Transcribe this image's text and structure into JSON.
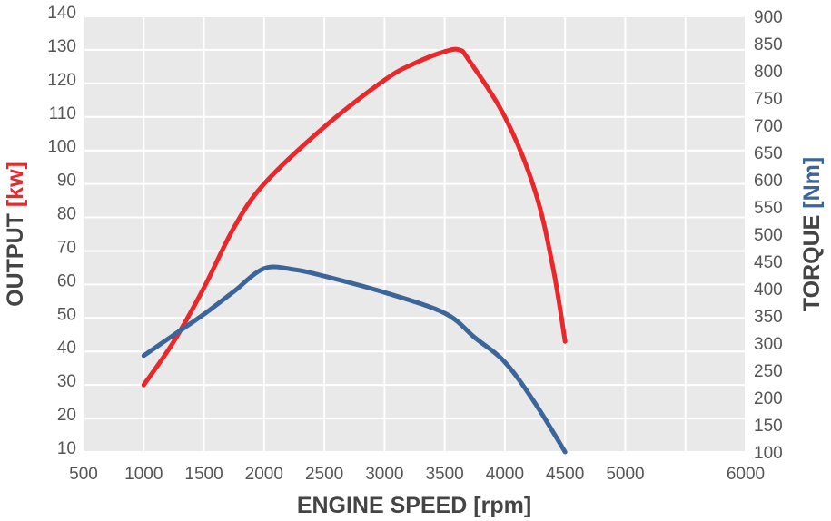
{
  "chart_data": {
    "type": "line",
    "xlabel": "ENGINE SPEED [rpm]",
    "ylabel_left": {
      "text": "OUTPUT ",
      "unit": "[kw]"
    },
    "ylabel_right": {
      "text": "TORQUE ",
      "unit": "[Nm]"
    },
    "x_range": [
      500,
      6000
    ],
    "x_ticks": [
      500,
      1000,
      1500,
      2000,
      2500,
      3000,
      3500,
      4000,
      4500,
      5000,
      6000
    ],
    "x_tick_labels": [
      "500",
      "1000",
      "1500",
      "2000",
      "2500",
      "3000",
      "3500",
      "4000",
      "4500",
      "5000",
      "6000"
    ],
    "x_grid": [
      500,
      1000,
      1500,
      2000,
      2500,
      3000,
      3500,
      4000,
      4500,
      5000,
      5500,
      6000
    ],
    "y_left_range": [
      10,
      140
    ],
    "y_left_ticks": [
      "10",
      "20",
      "30",
      "40",
      "50",
      "60",
      "70",
      "80",
      "90",
      "100",
      "110",
      "120",
      "130",
      "140"
    ],
    "y_right_range": [
      100,
      900
    ],
    "y_right_ticks": [
      "100",
      "150",
      "200",
      "250",
      "300",
      "350",
      "400",
      "450",
      "500",
      "550",
      "600",
      "650",
      "700",
      "750",
      "800",
      "850",
      "900"
    ],
    "grid": true,
    "series": [
      {
        "name": "",
        "axis": "left",
        "color": "#e8282b",
        "x": [
          1000,
          1250,
          1500,
          1750,
          2000,
          2500,
          3000,
          3250,
          3500,
          3620,
          3700,
          4000,
          4250,
          4400,
          4500
        ],
        "y": [
          30,
          43,
          59,
          77,
          90,
          107,
          121,
          126,
          129.5,
          130,
          127,
          110,
          88,
          65,
          43
        ]
      },
      {
        "name": "",
        "axis": "right",
        "color": "#3c6699",
        "x": [
          1000,
          1250,
          1500,
          1750,
          2000,
          2250,
          2500,
          3000,
          3500,
          3750,
          4000,
          4250,
          4500
        ],
        "y": [
          277,
          315,
          353,
          395,
          437,
          435,
          423,
          393,
          355,
          310,
          265,
          190,
          100
        ]
      }
    ]
  }
}
